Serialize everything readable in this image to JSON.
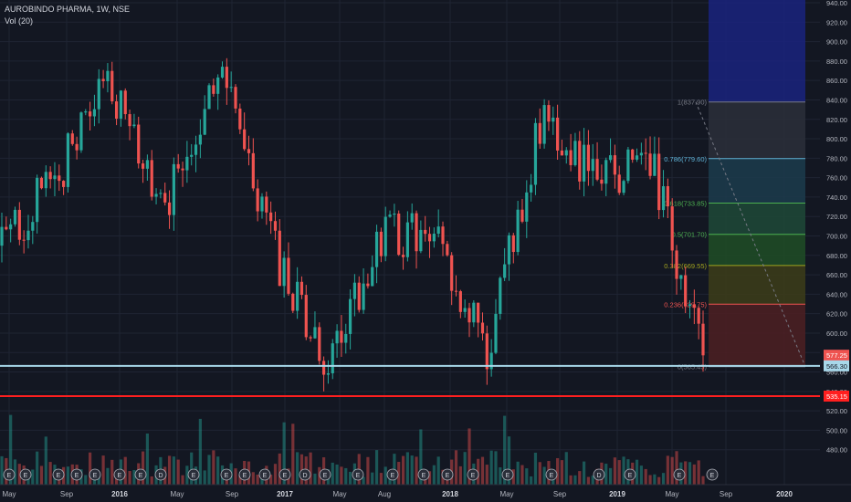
{
  "header": {
    "symbol_line": "AUROBINDO PHARMA, 1W, NSE",
    "volume_line": "Vol (20)"
  },
  "colors": {
    "background": "#131722",
    "up": "#26a69a",
    "down": "#ef5350",
    "grid": "#1f2433",
    "axis_text": "#b2b5be",
    "support_cyan": "#a8d8ea",
    "support_red": "#ff1f1f"
  },
  "chart_data": {
    "type": "candlestick",
    "interval": "1W",
    "exchange": "NSE",
    "x_labels": [
      "May",
      "Sep",
      "2016",
      "May",
      "Sep",
      "2017",
      "May",
      "Aug",
      "2018",
      "May",
      "Sep",
      "2019",
      "May",
      "Sep",
      "2020"
    ],
    "y_axis": {
      "min": 460,
      "max": 940,
      "tick_labels": [
        "940.00",
        "920.00",
        "900.00",
        "880.00",
        "860.00",
        "840.00",
        "820.00",
        "800.00",
        "780.00",
        "760.00",
        "740.00",
        "720.00",
        "700.00",
        "680.00",
        "660.00",
        "640.00",
        "620.00",
        "600.00",
        "580.00",
        "560.00",
        "540.00",
        "520.00",
        "500.00",
        "480.00"
      ]
    },
    "price_series": {
      "approx_levels": [
        {
          "label": "May",
          "value": 690
        },
        {
          "label": "Sep",
          "value": 760
        },
        {
          "label": "2016",
          "value": 860
        },
        {
          "label": "May",
          "value": 720
        },
        {
          "label": "Sep",
          "value": 880
        },
        {
          "label": "2017",
          "value": 690
        },
        {
          "label": "May",
          "value": 560
        },
        {
          "label": "Aug",
          "value": 700
        },
        {
          "label": "2018",
          "value": 700
        },
        {
          "label": "May",
          "value": 580
        },
        {
          "label": "Sep",
          "value": 820
        },
        {
          "label": "2019",
          "value": 760
        },
        {
          "label": "May",
          "value": 780
        },
        {
          "label": "last",
          "value": 577.25
        }
      ]
    },
    "fibonacci": {
      "levels": [
        {
          "ratio": "1",
          "value": 837.9,
          "label": "1(837.90)",
          "color": "#787b86"
        },
        {
          "ratio": "0.786",
          "value": 779.6,
          "label": "0.786(779.60)",
          "color": "#5fb2d6"
        },
        {
          "ratio": "0.618",
          "value": 733.85,
          "label": "0.618(733.85)",
          "color": "#4caf50"
        },
        {
          "ratio": "0.5",
          "value": 701.7,
          "label": "0.5(701.70)",
          "color": "#4caf50"
        },
        {
          "ratio": "0.382",
          "value": 669.55,
          "label": "0.382(669.55)",
          "color": "#a1a31f"
        },
        {
          "ratio": "0.236",
          "value": 629.75,
          "label": "0.236(629.75)",
          "color": "#ef5350"
        },
        {
          "ratio": "0",
          "value": 565.45,
          "label": "0(565.45)",
          "color": "#787b86"
        }
      ]
    },
    "horizontal_lines": [
      {
        "value": 566.3,
        "label": "566.30",
        "color": "#a8d8ea"
      },
      {
        "value": 535.15,
        "label": "535.15",
        "color": "#ff1f1f"
      }
    ],
    "last_price": {
      "value": 577.25,
      "label": "577.25",
      "color": "#ef5350"
    },
    "event_markers": [
      "E",
      "E",
      "E",
      "E",
      "E",
      "E",
      "E",
      "D",
      "E",
      "E",
      "E",
      "E",
      "E",
      "D",
      "E",
      "E",
      "E",
      "E",
      "E",
      "E",
      "E",
      "E",
      "D",
      "E",
      "E",
      "E"
    ],
    "volume_label": "Vol (20)"
  }
}
